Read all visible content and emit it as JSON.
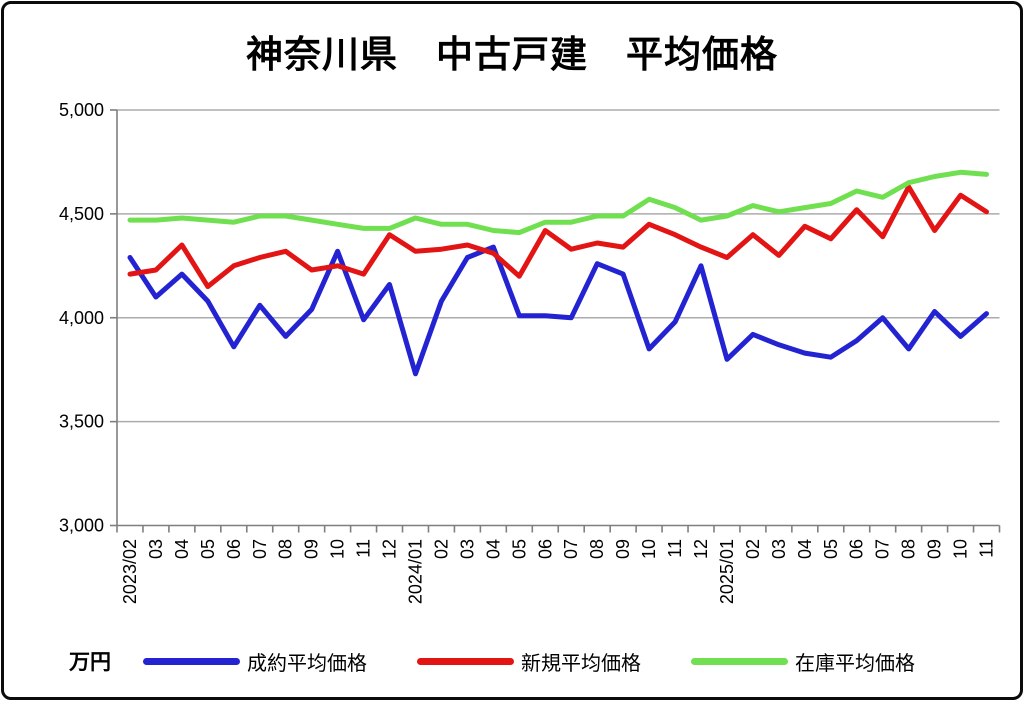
{
  "chart_data": {
    "type": "line",
    "title": "神奈川県　中古戸建　平均価格",
    "unit_label": "万円",
    "categories": [
      "2023/02",
      "03",
      "04",
      "05",
      "06",
      "07",
      "08",
      "09",
      "10",
      "11",
      "12",
      "2024/01",
      "02",
      "03",
      "04",
      "05",
      "06",
      "07",
      "08",
      "09",
      "10",
      "11",
      "12",
      "2025/01",
      "02",
      "03",
      "04",
      "05",
      "06",
      "07",
      "08",
      "09",
      "10",
      "11"
    ],
    "series": [
      {
        "name": "成約平均価格",
        "color": "#2323D2",
        "values": [
          4290,
          4100,
          4210,
          4080,
          3860,
          4060,
          3910,
          4040,
          4320,
          3990,
          4160,
          3730,
          4080,
          4290,
          4340,
          4010,
          4010,
          4000,
          4260,
          4210,
          3850,
          3980,
          4250,
          3800,
          3920,
          3870,
          3830,
          3810,
          3890,
          4000,
          3850,
          4030,
          3910,
          4020
        ]
      },
      {
        "name": "新規平均価格",
        "color": "#E21414",
        "values": [
          4210,
          4230,
          4350,
          4150,
          4250,
          4290,
          4320,
          4230,
          4250,
          4210,
          4400,
          4320,
          4330,
          4350,
          4310,
          4200,
          4420,
          4330,
          4360,
          4340,
          4450,
          4400,
          4340,
          4290,
          4400,
          4300,
          4440,
          4380,
          4520,
          4390,
          4630,
          4420,
          4590,
          4510
        ]
      },
      {
        "name": "在庫平均価格",
        "color": "#70E050",
        "values": [
          4470,
          4470,
          4480,
          4470,
          4460,
          4490,
          4490,
          4470,
          4450,
          4430,
          4430,
          4480,
          4450,
          4450,
          4420,
          4410,
          4460,
          4460,
          4490,
          4490,
          4570,
          4530,
          4470,
          4490,
          4540,
          4510,
          4530,
          4550,
          4610,
          4580,
          4650,
          4680,
          4700,
          4690
        ]
      }
    ],
    "ylim": [
      3000,
      5000
    ],
    "ytick_step": 500,
    "ytick_labels": [
      "3,000",
      "3,500",
      "4,000",
      "4,500",
      "5,000"
    ],
    "grid": true,
    "legend_position": "bottom",
    "colors": {
      "gridline": "#ABABAB",
      "axis": "#7F7F7F",
      "text": "#000000"
    }
  }
}
